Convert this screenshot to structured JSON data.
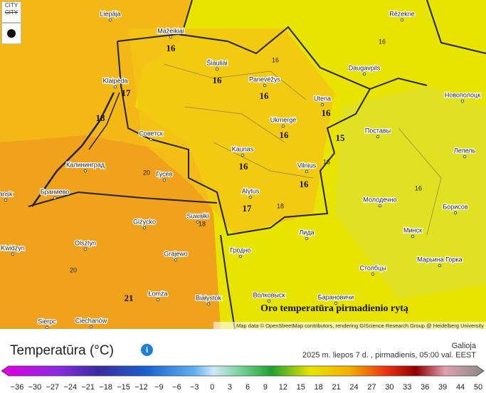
{
  "map": {
    "controls": [
      "CITY",
      "CITY"
    ],
    "cities": [
      "Liepāja",
      "Mažeikiai",
      "Rēzekne",
      "Šiauliai",
      "Panevėžys",
      "Daugavpils",
      "Klaipėda",
      "Utena",
      "Новополоцк",
      "Ukmergė",
      "Поставы",
      "Советск",
      "Kaunas",
      "Vilnius",
      "Лепель",
      "Калининград",
      "Гусев",
      "Alytus",
      "Браниево",
      "Молодечно",
      "Борисов",
      "Suwałki",
      "Giżycko",
      "Лида",
      "Минск",
      "Olsztyn",
      "Гродно",
      "Kwidzyn",
      "Grajewo",
      "Марьина Горка",
      "Столбцы",
      "Łomża",
      "Białystok",
      "Волковыск",
      "Барановичи",
      "Sierpc",
      "Ciechanów",
      "ansk"
    ],
    "temperatures": [
      16,
      16,
      16,
      17,
      18,
      16,
      16,
      15,
      16,
      16,
      17,
      21
    ],
    "small_temperatures": [
      16,
      16,
      16,
      16,
      18,
      18,
      20,
      20
    ],
    "caption": "Oro temperatūra pirmadienio rytą",
    "attribution": "Map data © OpenStreetMap contributors, rendering GIScience Research Group @ Heidelberg University"
  },
  "legend": {
    "title": "Temperatūra (°C)",
    "info": "i",
    "valid_label": "Galioja",
    "valid_time": "2025 m. liepos 7 d. , pirmadienis, 05:00 val. EEST",
    "scale": [
      "−36",
      "−30",
      "−27",
      "−24",
      "−21",
      "−18",
      "−15",
      "−12",
      "−9",
      "−6",
      "−3",
      "0",
      "3",
      "6",
      "9",
      "12",
      "15",
      "18",
      "21",
      "24",
      "27",
      "30",
      "33",
      "36",
      "39",
      "44",
      "50"
    ]
  }
}
